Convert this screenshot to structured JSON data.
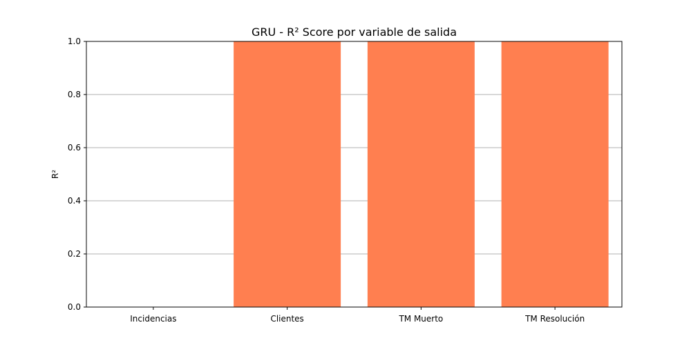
{
  "chart_data": {
    "type": "bar",
    "title": "GRU - R² Score por variable de salida",
    "xlabel": "",
    "ylabel": "R²",
    "categories": [
      "Incidencias",
      "Clientes",
      "TM Muerto",
      "TM Resolución"
    ],
    "values": [
      0,
      1,
      1,
      1
    ],
    "ylim": [
      0,
      1
    ],
    "yticks": [
      "0.0",
      "0.2",
      "0.4",
      "0.6",
      "0.8",
      "1.0"
    ],
    "grid": "y-axis only",
    "bar_color": "#ff7f50",
    "grid_color": "#b0b0b0"
  }
}
